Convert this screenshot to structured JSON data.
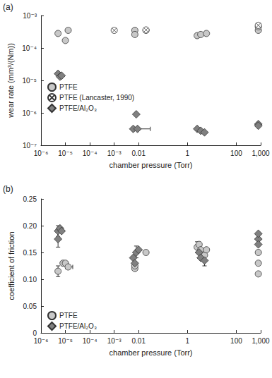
{
  "chart_data": [
    {
      "type": "scatter",
      "title": "(a)",
      "x_label": "chamber pressure (Torr)",
      "y_label": "wear rate (mm³/(Nm))",
      "log": true,
      "grid": false,
      "legend": "lower left",
      "xlim": [
        1e-06,
        1000
      ],
      "xticks": [
        {
          "value": 1e-06,
          "label": "10⁻⁶"
        },
        {
          "value": 1e-05,
          "label": "10⁻⁵"
        },
        {
          "value": 0.0001,
          "label": "10⁻⁴"
        },
        {
          "value": 0.001,
          "label": "10⁻³"
        },
        0.01,
        1,
        100,
        {
          "value": 1000,
          "label": "1,000"
        }
      ],
      "ylim": [
        1e-07,
        0.001
      ],
      "yticks": [
        {
          "value": 1e-07,
          "label": "10⁻⁷"
        },
        {
          "value": 1e-06,
          "label": "10⁻⁶"
        },
        {
          "value": 1e-05,
          "label": "10⁻⁵"
        },
        {
          "value": 0.0001,
          "label": "10⁻⁴"
        },
        {
          "value": 0.001,
          "label": "10⁻³"
        }
      ],
      "series": [
        {
          "name": "PTFE",
          "color": "#c8c8c8",
          "marker": "circle",
          "x": [
            5e-06,
            1e-05,
            1.3e-05,
            0.007,
            0.007,
            0.02,
            2.5,
            3.5,
            6,
            800,
            800
          ],
          "values": [
            0.00028,
            0.00017,
            0.00035,
            0.00035,
            0.00026,
            0.00035,
            0.00024,
            0.00026,
            0.00028,
            0.00035,
            0.00045
          ]
        },
        {
          "name": "PTFE (Lancaster, 1990)",
          "color": "#ffffff",
          "marker": "circle-cross",
          "x": [
            0.001,
            0.02,
            800
          ],
          "values": [
            0.00035,
            0.00036,
            0.0005
          ]
        },
        {
          "name": "PTFE/Al₂O₃",
          "color": "#808080",
          "marker": "diamond",
          "x": [
            5e-06,
            6e-06,
            7e-06,
            0.008,
            0.006,
            0.009,
            2.5,
            3.5,
            5,
            800,
            800
          ],
          "values": [
            1.6e-05,
            1.3e-05,
            1.4e-05,
            9e-07,
            3.2e-07,
            3.2e-07,
            3.2e-07,
            2.8e-07,
            2.5e-07,
            4.5e-07,
            4e-07
          ],
          "x_error": [
            null,
            null,
            null,
            null,
            null,
            [
              0.006,
              0.03
            ],
            null,
            null,
            null,
            null,
            null
          ]
        }
      ]
    },
    {
      "type": "scatter",
      "title": "(b)",
      "x_label": "chamber pressure (Torr)",
      "y_label": "coefficient of friction",
      "log": "x",
      "grid": false,
      "legend": "lower left",
      "xlim": [
        1e-06,
        1000
      ],
      "xticks": [
        {
          "value": 1e-06,
          "label": "10⁻⁶"
        },
        {
          "value": 1e-05,
          "label": "10⁻⁵"
        },
        {
          "value": 0.0001,
          "label": "10⁻⁴"
        },
        {
          "value": 0.001,
          "label": "10⁻³"
        },
        0.01,
        1,
        100,
        {
          "value": 1000,
          "label": "1,000"
        }
      ],
      "ylim": [
        0,
        0.25
      ],
      "yticks": [
        0,
        0.05,
        {
          "value": 0.1,
          "label": "0.10"
        },
        0.15,
        {
          "value": 0.2,
          "label": "0.20"
        },
        0.25
      ],
      "series": [
        {
          "name": "PTFE",
          "color": "#c8c8c8",
          "marker": "circle",
          "x": [
            5e-06,
            8e-06,
            1e-05,
            1.3e-05,
            0.007,
            0.007,
            0.02,
            2.5,
            3,
            3.5,
            5,
            6,
            800,
            800,
            800
          ],
          "values": [
            0.115,
            0.13,
            0.13,
            0.123,
            0.12,
            0.125,
            0.15,
            0.16,
            0.165,
            0.155,
            0.145,
            0.155,
            0.15,
            0.13,
            0.11
          ],
          "x_error": [
            null,
            null,
            null,
            [
              1e-05,
              2e-05
            ],
            null,
            null,
            null,
            null,
            null,
            null,
            null,
            null,
            null,
            null,
            null
          ],
          "y_error": [
            [
              0.105,
              0.125
            ],
            null,
            null,
            null,
            null,
            null,
            null,
            [
              0.15,
              0.17
            ],
            null,
            null,
            null,
            null,
            null,
            null,
            null
          ]
        },
        {
          "name": "PTFE/Al₂O₃",
          "color": "#808080",
          "marker": "diamond",
          "x": [
            5e-06,
            5e-06,
            6e-06,
            7e-06,
            0.006,
            0.007,
            0.008,
            0.01,
            3,
            3.5,
            5,
            800,
            800,
            800
          ],
          "values": [
            0.175,
            0.19,
            0.195,
            0.19,
            0.14,
            0.13,
            0.15,
            0.155,
            0.15,
            0.14,
            0.135,
            0.175,
            0.185,
            0.165
          ],
          "y_error": [
            [
              0.16,
              0.19
            ],
            [
              0.18,
              0.2
            ],
            null,
            null,
            null,
            null,
            [
              0.14,
              0.162
            ],
            null,
            null,
            null,
            [
              0.125,
              0.145
            ],
            null,
            null,
            null
          ]
        }
      ]
    }
  ]
}
